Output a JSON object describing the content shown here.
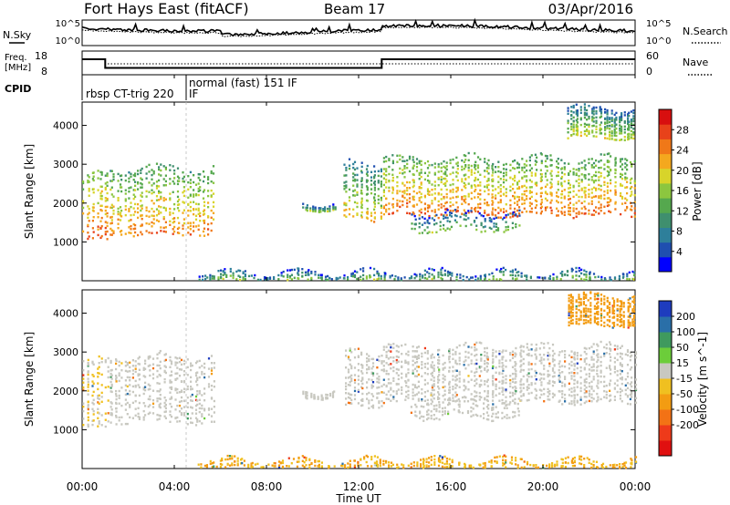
{
  "header": {
    "title": "Fort Hays East (fitACF)",
    "beam": "Beam 17",
    "date": "03/Apr/2016"
  },
  "noise_panel": {
    "left_label": "N.Sky",
    "left_ticks": [
      "10^5",
      "10^0"
    ],
    "right_ticks": [
      "10^5",
      "10^0"
    ],
    "right_label": "N.Search"
  },
  "freq_panel": {
    "left_label_line1": "Freq.",
    "left_label_line2": "[MHz]",
    "left_ticks": [
      "18",
      "8"
    ],
    "right_ticks": [
      "60",
      "0"
    ],
    "right_label": "Nave",
    "freq_steps": [
      {
        "from_h": 0.0,
        "to_h": 1.0,
        "mhz": 14.5
      },
      {
        "from_h": 1.0,
        "to_h": 4.5,
        "mhz": 10.4
      },
      {
        "from_h": 4.5,
        "to_h": 13.0,
        "mhz": 10.4
      },
      {
        "from_h": 13.0,
        "to_h": 24.0,
        "mhz": 14.5
      }
    ]
  },
  "cpid": {
    "label": "CPID",
    "modes": [
      {
        "text": "rbsp CT-trig 220",
        "start_h": 0.0
      },
      {
        "text": "normal (fast) 151 IF",
        "start_h": 4.5
      }
    ],
    "suffix": "IF"
  },
  "chart_data": [
    {
      "type": "heatmap",
      "panel": "power",
      "ylabel": "Slant Range [km]",
      "ylim": [
        0,
        4600
      ],
      "yticks": [
        1000,
        2000,
        3000,
        4000
      ],
      "colorbar_label": "Power [dB]",
      "colorbar_ticks": [
        4,
        8,
        12,
        16,
        20,
        24,
        28
      ],
      "colorbar_range": [
        0,
        32
      ],
      "colors": [
        "#0000ff",
        "#1f4fb0",
        "#2e7f9a",
        "#3f8f6e",
        "#55a84e",
        "#8cc63f",
        "#d8d42a",
        "#f4a81e",
        "#f07818",
        "#e8421a",
        "#d80f0f"
      ],
      "echo_bands": [
        {
          "t0": 0.0,
          "t1": 1.1,
          "r0": 1050,
          "r1": 2800,
          "power": 20
        },
        {
          "t0": 1.1,
          "t1": 5.7,
          "r0": 1200,
          "r1": 2950,
          "power": 18
        },
        {
          "t0": 9.5,
          "t1": 11.0,
          "r0": 1850,
          "r1": 2050,
          "power": 10
        },
        {
          "t0": 11.3,
          "t1": 13.0,
          "r0": 1600,
          "r1": 3100,
          "power": 14
        },
        {
          "t0": 13.0,
          "t1": 24.0,
          "r0": 1700,
          "r1": 3200,
          "power": 19
        },
        {
          "t0": 14.2,
          "t1": 19.0,
          "r0": 1300,
          "r1": 1800,
          "power": 9
        },
        {
          "t0": 21.0,
          "t1": 24.0,
          "r0": 3700,
          "r1": 4500,
          "power": 12
        },
        {
          "t0": 5.0,
          "t1": 24.0,
          "r0": 0,
          "r1": 250,
          "power": 10
        }
      ]
    },
    {
      "type": "heatmap",
      "panel": "velocity",
      "ylabel": "Slant Range [km]",
      "ylim": [
        0,
        4600
      ],
      "yticks": [
        1000,
        2000,
        3000,
        4000
      ],
      "colorbar_label": "Velocity [m s^-1]",
      "colorbar_ticks": [
        200,
        100,
        50,
        15,
        -15,
        -50,
        -100,
        -200
      ],
      "colors": [
        "#1e3cbe",
        "#2a6fa8",
        "#3f9a5e",
        "#6ccd3a",
        "#c8c8c0",
        "#f0c020",
        "#f39c12",
        "#f37215",
        "#ee3a1a",
        "#e01010"
      ],
      "echo_bands": [
        {
          "t0": 0.0,
          "t1": 1.1,
          "r0": 1050,
          "r1": 2800,
          "velocity": -15
        },
        {
          "t0": 1.1,
          "t1": 5.7,
          "r0": 1200,
          "r1": 2950,
          "velocity": 0
        },
        {
          "t0": 9.5,
          "t1": 11.0,
          "r0": 1850,
          "r1": 2050,
          "velocity": 0
        },
        {
          "t0": 11.3,
          "t1": 13.0,
          "r0": 1600,
          "r1": 3100,
          "velocity": 0
        },
        {
          "t0": 13.0,
          "t1": 24.0,
          "r0": 1700,
          "r1": 3200,
          "velocity": 0
        },
        {
          "t0": 14.2,
          "t1": 19.0,
          "r0": 1300,
          "r1": 1800,
          "velocity": 0
        },
        {
          "t0": 21.0,
          "t1": 24.0,
          "r0": 3700,
          "r1": 4500,
          "velocity": -60
        },
        {
          "t0": 5.0,
          "t1": 24.0,
          "r0": 0,
          "r1": 250,
          "velocity": -30
        }
      ]
    }
  ],
  "x_axis": {
    "xlabel": "Time UT",
    "ticks": [
      "00:00",
      "04:00",
      "08:00",
      "12:00",
      "16:00",
      "20:00",
      "00:00"
    ],
    "tick_hours": [
      0,
      4,
      8,
      12,
      16,
      20,
      24
    ]
  }
}
